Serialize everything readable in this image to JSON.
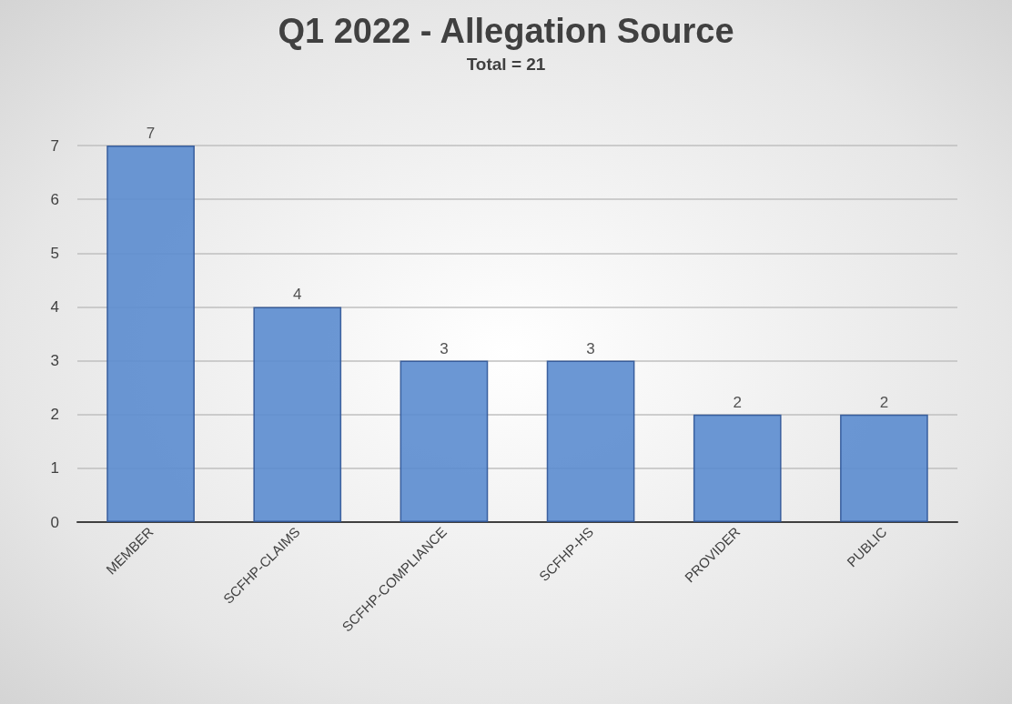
{
  "chart_data": {
    "type": "bar",
    "title": "Q1 2022 - Allegation Source",
    "subtitle": "Total = 21",
    "categories": [
      "MEMBER",
      "SCFHP-CLAIMS",
      "SCFHP-COMPLIANCE",
      "SCFHP-HS",
      "PROVIDER",
      "PUBLIC"
    ],
    "values": [
      7,
      4,
      3,
      3,
      2,
      2
    ],
    "color": "#5b8ccf",
    "ylim": [
      0,
      7
    ],
    "yticks": [
      0,
      1,
      2,
      3,
      4,
      5,
      6,
      7
    ],
    "grid": "y",
    "data_labels": true
  }
}
